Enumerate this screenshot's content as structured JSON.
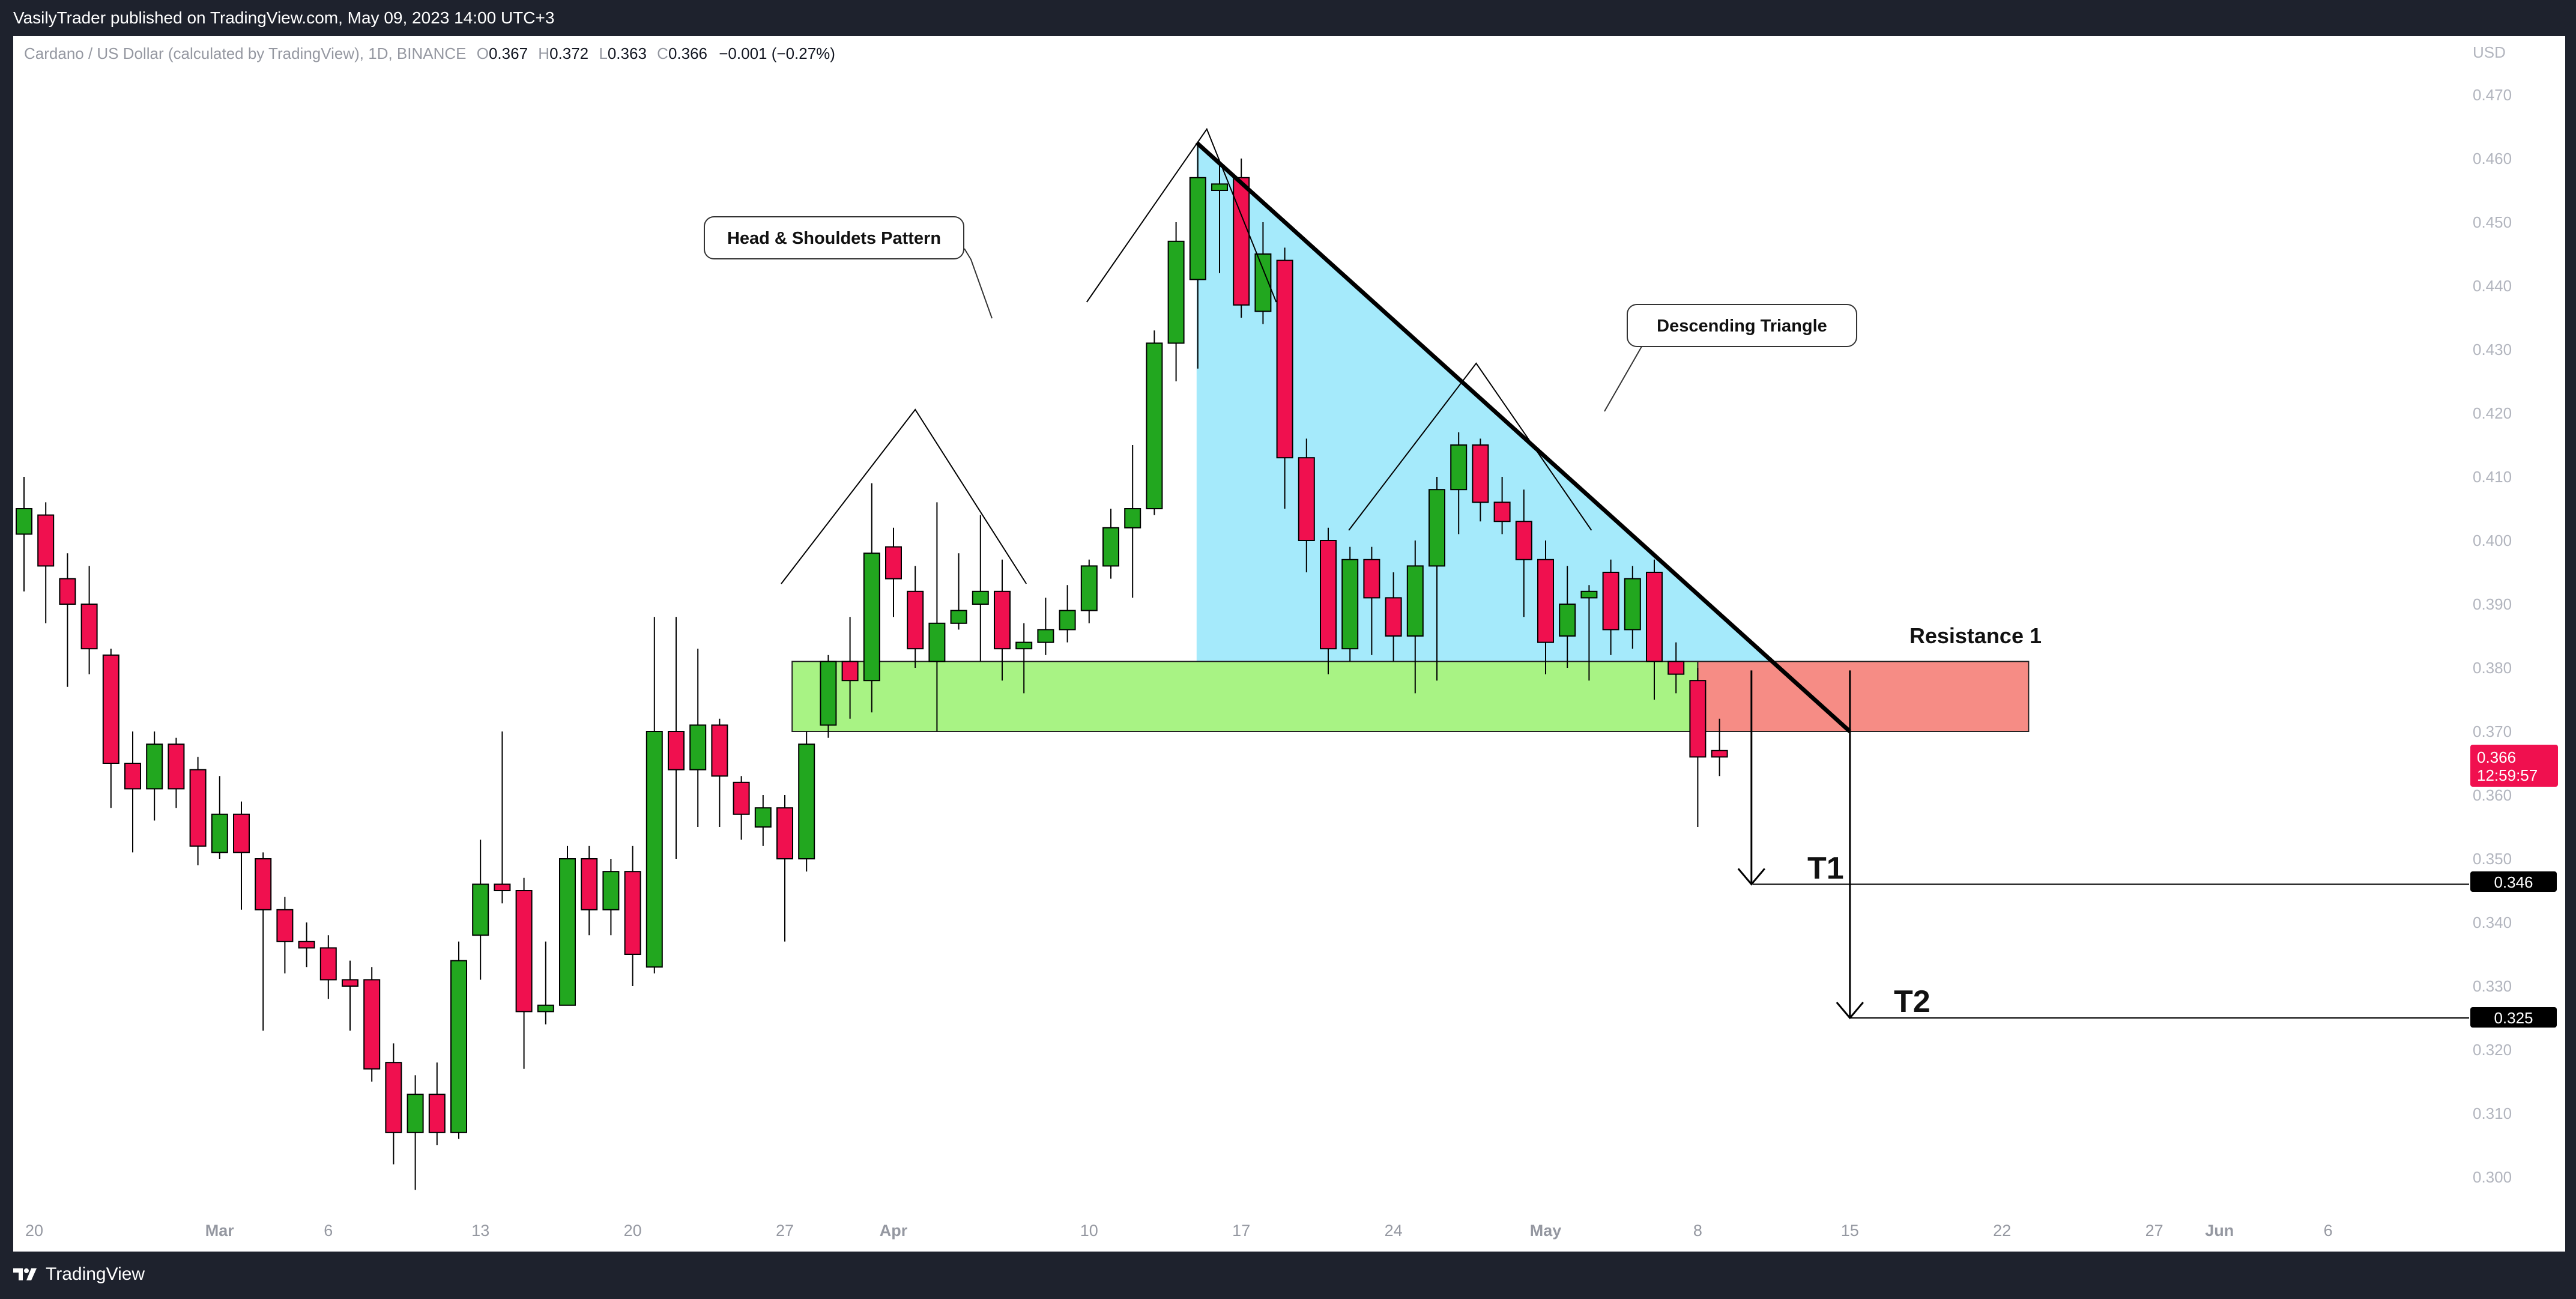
{
  "header": {
    "published": "VasilyTrader published on TradingView.com, May 09, 2023 14:00 UTC+3"
  },
  "footer": {
    "logo_text": "TradingView"
  },
  "legend": {
    "symbol": "Cardano / US Dollar (calculated by TradingView), 1D, BINANCE",
    "o_label": "O",
    "o_value": "0.367",
    "h_label": "H",
    "h_value": "0.372",
    "l_label": "L",
    "l_value": "0.363",
    "c_label": "C",
    "c_value": "0.366",
    "change": "−0.001 (−0.27%)"
  },
  "price_axis": {
    "currency": "USD",
    "ticks": [
      "0.470",
      "0.460",
      "0.450",
      "0.440",
      "0.430",
      "0.420",
      "0.410",
      "0.400",
      "0.390",
      "0.380",
      "0.370",
      "0.360",
      "0.350",
      "0.340",
      "0.330",
      "0.320",
      "0.310",
      "0.300"
    ],
    "current_price": "0.366",
    "countdown": "12:59:57",
    "t1_price": "0.346",
    "t2_price": "0.325"
  },
  "time_axis": {
    "labels": [
      "20",
      "Mar",
      "6",
      "13",
      "20",
      "27",
      "Apr",
      "10",
      "17",
      "24",
      "May",
      "8",
      "15",
      "22",
      "27",
      "Jun",
      "6"
    ]
  },
  "annotations": {
    "head_shoulders": "Head & Shouldets Pattern",
    "descending_triangle": "Descending Triangle",
    "resistance": "Resistance 1",
    "t1": "T1",
    "t2": "T2"
  },
  "colors": {
    "up": "#22a71f",
    "down": "#f0104f",
    "green_zone": "#a8f384",
    "red_zone": "#f68c85",
    "triangle_fill": "#a5eafb",
    "background": "#1e222d"
  },
  "chart_data": {
    "type": "candlestick",
    "symbol": "ADAUSD",
    "interval": "1D",
    "ylim": [
      0.295,
      0.475
    ],
    "candles": [
      {
        "date": "2023-02-20",
        "o": 0.401,
        "h": 0.41,
        "l": 0.392,
        "c": 0.405
      },
      {
        "date": "2023-02-21",
        "o": 0.404,
        "h": 0.406,
        "l": 0.387,
        "c": 0.396
      },
      {
        "date": "2023-02-22",
        "o": 0.394,
        "h": 0.398,
        "l": 0.377,
        "c": 0.39
      },
      {
        "date": "2023-02-23",
        "o": 0.39,
        "h": 0.396,
        "l": 0.379,
        "c": 0.383
      },
      {
        "date": "2023-02-24",
        "o": 0.382,
        "h": 0.383,
        "l": 0.358,
        "c": 0.365
      },
      {
        "date": "2023-02-25",
        "o": 0.365,
        "h": 0.37,
        "l": 0.351,
        "c": 0.361
      },
      {
        "date": "2023-02-26",
        "o": 0.361,
        "h": 0.37,
        "l": 0.356,
        "c": 0.368
      },
      {
        "date": "2023-02-27",
        "o": 0.368,
        "h": 0.369,
        "l": 0.358,
        "c": 0.361
      },
      {
        "date": "2023-02-28",
        "o": 0.364,
        "h": 0.366,
        "l": 0.349,
        "c": 0.352
      },
      {
        "date": "2023-03-01",
        "o": 0.351,
        "h": 0.363,
        "l": 0.35,
        "c": 0.357
      },
      {
        "date": "2023-03-02",
        "o": 0.357,
        "h": 0.359,
        "l": 0.342,
        "c": 0.351
      },
      {
        "date": "2023-03-03",
        "o": 0.35,
        "h": 0.351,
        "l": 0.323,
        "c": 0.342
      },
      {
        "date": "2023-03-04",
        "o": 0.342,
        "h": 0.344,
        "l": 0.332,
        "c": 0.337
      },
      {
        "date": "2023-03-05",
        "o": 0.337,
        "h": 0.34,
        "l": 0.333,
        "c": 0.336
      },
      {
        "date": "2023-03-06",
        "o": 0.336,
        "h": 0.338,
        "l": 0.328,
        "c": 0.331
      },
      {
        "date": "2023-03-07",
        "o": 0.331,
        "h": 0.334,
        "l": 0.323,
        "c": 0.33
      },
      {
        "date": "2023-03-08",
        "o": 0.331,
        "h": 0.333,
        "l": 0.315,
        "c": 0.317
      },
      {
        "date": "2023-03-09",
        "o": 0.318,
        "h": 0.321,
        "l": 0.302,
        "c": 0.307
      },
      {
        "date": "2023-03-10",
        "o": 0.307,
        "h": 0.316,
        "l": 0.298,
        "c": 0.313
      },
      {
        "date": "2023-03-11",
        "o": 0.313,
        "h": 0.318,
        "l": 0.305,
        "c": 0.307
      },
      {
        "date": "2023-03-12",
        "o": 0.307,
        "h": 0.337,
        "l": 0.306,
        "c": 0.334
      },
      {
        "date": "2023-03-13",
        "o": 0.338,
        "h": 0.353,
        "l": 0.331,
        "c": 0.346
      },
      {
        "date": "2023-03-14",
        "o": 0.346,
        "h": 0.37,
        "l": 0.343,
        "c": 0.345
      },
      {
        "date": "2023-03-15",
        "o": 0.345,
        "h": 0.347,
        "l": 0.317,
        "c": 0.326
      },
      {
        "date": "2023-03-16",
        "o": 0.326,
        "h": 0.337,
        "l": 0.324,
        "c": 0.327
      },
      {
        "date": "2023-03-17",
        "o": 0.327,
        "h": 0.352,
        "l": 0.327,
        "c": 0.35
      },
      {
        "date": "2023-03-18",
        "o": 0.35,
        "h": 0.352,
        "l": 0.338,
        "c": 0.342
      },
      {
        "date": "2023-03-19",
        "o": 0.342,
        "h": 0.35,
        "l": 0.338,
        "c": 0.348
      },
      {
        "date": "2023-03-20",
        "o": 0.348,
        "h": 0.352,
        "l": 0.33,
        "c": 0.335
      },
      {
        "date": "2023-03-21",
        "o": 0.333,
        "h": 0.388,
        "l": 0.332,
        "c": 0.37
      },
      {
        "date": "2023-03-22",
        "o": 0.37,
        "h": 0.388,
        "l": 0.35,
        "c": 0.364
      },
      {
        "date": "2023-03-23",
        "o": 0.364,
        "h": 0.383,
        "l": 0.355,
        "c": 0.371
      },
      {
        "date": "2023-03-24",
        "o": 0.371,
        "h": 0.372,
        "l": 0.355,
        "c": 0.363
      },
      {
        "date": "2023-03-25",
        "o": 0.362,
        "h": 0.363,
        "l": 0.353,
        "c": 0.357
      },
      {
        "date": "2023-03-26",
        "o": 0.355,
        "h": 0.36,
        "l": 0.352,
        "c": 0.358
      },
      {
        "date": "2023-03-27",
        "o": 0.358,
        "h": 0.36,
        "l": 0.337,
        "c": 0.35
      },
      {
        "date": "2023-03-28",
        "o": 0.35,
        "h": 0.37,
        "l": 0.348,
        "c": 0.368
      },
      {
        "date": "2023-03-29",
        "o": 0.371,
        "h": 0.382,
        "l": 0.369,
        "c": 0.381
      },
      {
        "date": "2023-03-30",
        "o": 0.381,
        "h": 0.388,
        "l": 0.372,
        "c": 0.378
      },
      {
        "date": "2023-03-31",
        "o": 0.378,
        "h": 0.409,
        "l": 0.373,
        "c": 0.398
      },
      {
        "date": "2023-04-01",
        "o": 0.399,
        "h": 0.402,
        "l": 0.388,
        "c": 0.394
      },
      {
        "date": "2023-04-02",
        "o": 0.392,
        "h": 0.396,
        "l": 0.38,
        "c": 0.383
      },
      {
        "date": "2023-04-03",
        "o": 0.381,
        "h": 0.406,
        "l": 0.37,
        "c": 0.387
      },
      {
        "date": "2023-04-04",
        "o": 0.387,
        "h": 0.398,
        "l": 0.386,
        "c": 0.389
      },
      {
        "date": "2023-04-05",
        "o": 0.39,
        "h": 0.404,
        "l": 0.381,
        "c": 0.392
      },
      {
        "date": "2023-04-06",
        "o": 0.392,
        "h": 0.397,
        "l": 0.378,
        "c": 0.383
      },
      {
        "date": "2023-04-07",
        "o": 0.383,
        "h": 0.387,
        "l": 0.376,
        "c": 0.384
      },
      {
        "date": "2023-04-08",
        "o": 0.384,
        "h": 0.391,
        "l": 0.382,
        "c": 0.386
      },
      {
        "date": "2023-04-09",
        "o": 0.386,
        "h": 0.393,
        "l": 0.384,
        "c": 0.389
      },
      {
        "date": "2023-04-10",
        "o": 0.389,
        "h": 0.397,
        "l": 0.387,
        "c": 0.396
      },
      {
        "date": "2023-04-11",
        "o": 0.396,
        "h": 0.405,
        "l": 0.394,
        "c": 0.402
      },
      {
        "date": "2023-04-12",
        "o": 0.402,
        "h": 0.415,
        "l": 0.391,
        "c": 0.405
      },
      {
        "date": "2023-04-13",
        "o": 0.405,
        "h": 0.433,
        "l": 0.404,
        "c": 0.431
      },
      {
        "date": "2023-04-14",
        "o": 0.431,
        "h": 0.45,
        "l": 0.425,
        "c": 0.447
      },
      {
        "date": "2023-04-15",
        "o": 0.441,
        "h": 0.462,
        "l": 0.427,
        "c": 0.457
      },
      {
        "date": "2023-04-16",
        "o": 0.455,
        "h": 0.459,
        "l": 0.442,
        "c": 0.456
      },
      {
        "date": "2023-04-17",
        "o": 0.457,
        "h": 0.46,
        "l": 0.435,
        "c": 0.437
      },
      {
        "date": "2023-04-18",
        "o": 0.436,
        "h": 0.45,
        "l": 0.434,
        "c": 0.445
      },
      {
        "date": "2023-04-19",
        "o": 0.444,
        "h": 0.446,
        "l": 0.405,
        "c": 0.413
      },
      {
        "date": "2023-04-20",
        "o": 0.413,
        "h": 0.416,
        "l": 0.395,
        "c": 0.4
      },
      {
        "date": "2023-04-21",
        "o": 0.4,
        "h": 0.402,
        "l": 0.379,
        "c": 0.383
      },
      {
        "date": "2023-04-22",
        "o": 0.383,
        "h": 0.399,
        "l": 0.381,
        "c": 0.397
      },
      {
        "date": "2023-04-23",
        "o": 0.397,
        "h": 0.399,
        "l": 0.382,
        "c": 0.391
      },
      {
        "date": "2023-04-24",
        "o": 0.391,
        "h": 0.395,
        "l": 0.381,
        "c": 0.385
      },
      {
        "date": "2023-04-25",
        "o": 0.385,
        "h": 0.4,
        "l": 0.376,
        "c": 0.396
      },
      {
        "date": "2023-04-26",
        "o": 0.396,
        "h": 0.41,
        "l": 0.378,
        "c": 0.408
      },
      {
        "date": "2023-04-27",
        "o": 0.408,
        "h": 0.417,
        "l": 0.401,
        "c": 0.415
      },
      {
        "date": "2023-04-28",
        "o": 0.415,
        "h": 0.416,
        "l": 0.403,
        "c": 0.406
      },
      {
        "date": "2023-04-29",
        "o": 0.406,
        "h": 0.41,
        "l": 0.401,
        "c": 0.403
      },
      {
        "date": "2023-04-30",
        "o": 0.403,
        "h": 0.408,
        "l": 0.388,
        "c": 0.397
      },
      {
        "date": "2023-05-01",
        "o": 0.397,
        "h": 0.4,
        "l": 0.379,
        "c": 0.384
      },
      {
        "date": "2023-05-02",
        "o": 0.385,
        "h": 0.396,
        "l": 0.38,
        "c": 0.39
      },
      {
        "date": "2023-05-03",
        "o": 0.391,
        "h": 0.393,
        "l": 0.378,
        "c": 0.392
      },
      {
        "date": "2023-05-04",
        "o": 0.395,
        "h": 0.397,
        "l": 0.382,
        "c": 0.386
      },
      {
        "date": "2023-05-05",
        "o": 0.386,
        "h": 0.396,
        "l": 0.383,
        "c": 0.394
      },
      {
        "date": "2023-05-06",
        "o": 0.395,
        "h": 0.397,
        "l": 0.375,
        "c": 0.381
      },
      {
        "date": "2023-05-07",
        "o": 0.381,
        "h": 0.384,
        "l": 0.376,
        "c": 0.379
      },
      {
        "date": "2023-05-08",
        "o": 0.378,
        "h": 0.38,
        "l": 0.355,
        "c": 0.366
      },
      {
        "date": "2023-05-09",
        "o": 0.367,
        "h": 0.372,
        "l": 0.363,
        "c": 0.366
      }
    ],
    "levels": [
      {
        "name": "T1",
        "value": 0.346
      },
      {
        "name": "T2",
        "value": 0.325
      }
    ],
    "zones": [
      {
        "name": "Resistance 1",
        "from": 0.37,
        "to": 0.381
      }
    ]
  }
}
